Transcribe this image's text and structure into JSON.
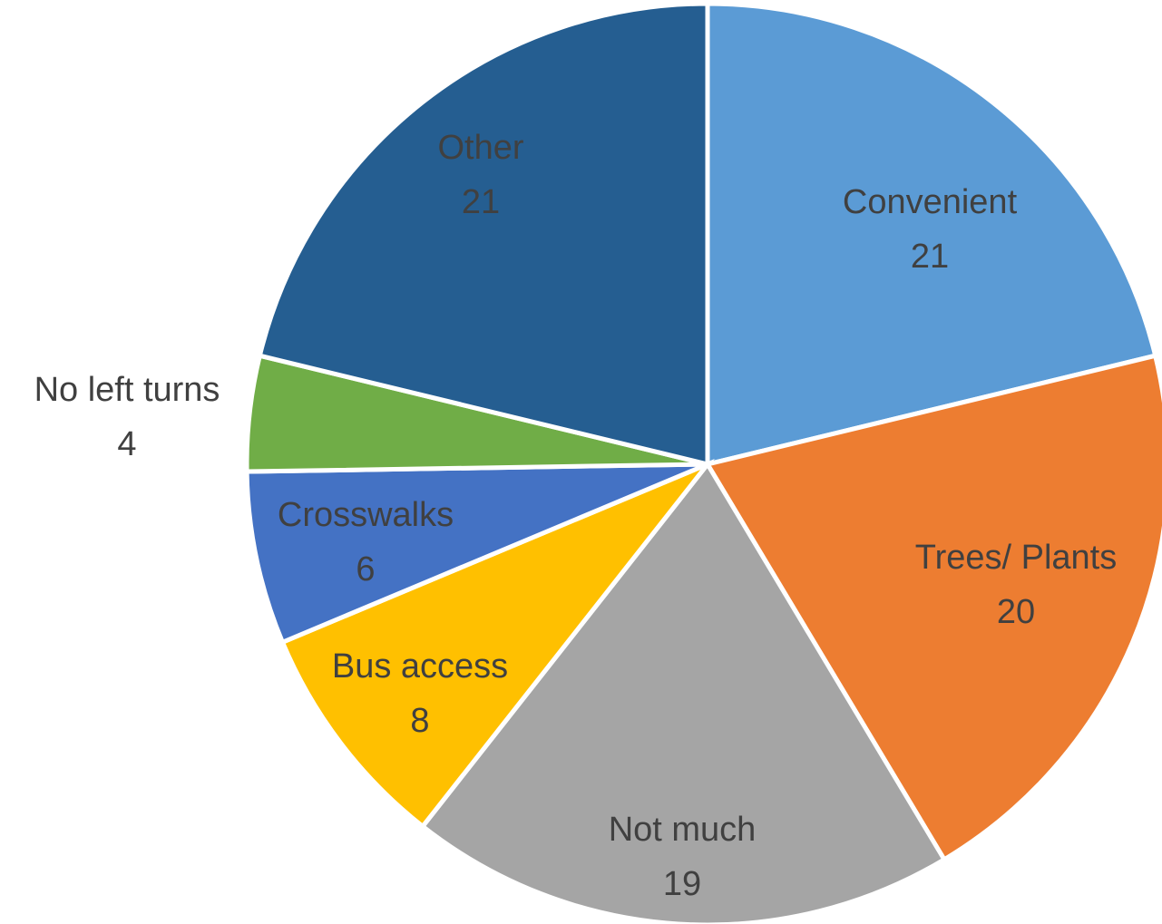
{
  "chart_data": {
    "type": "pie",
    "title": "",
    "slices": [
      {
        "label": "Convenient",
        "value": 21,
        "color": "#5B9BD5"
      },
      {
        "label": "Trees/ Plants",
        "value": 20,
        "color": "#ED7D31"
      },
      {
        "label": "Not much",
        "value": 19,
        "color": "#A5A5A5"
      },
      {
        "label": "Bus access",
        "value": 8,
        "color": "#FFC000"
      },
      {
        "label": "Crosswalks",
        "value": 6,
        "color": "#4472C4"
      },
      {
        "label": "No left turns",
        "value": 4,
        "color": "#70AD47"
      },
      {
        "label": "Other",
        "value": 21,
        "color": "#255E91"
      }
    ],
    "start_angle": "12 o'clock",
    "direction": "clockwise",
    "legend": "none",
    "data_labels": "category and value"
  }
}
